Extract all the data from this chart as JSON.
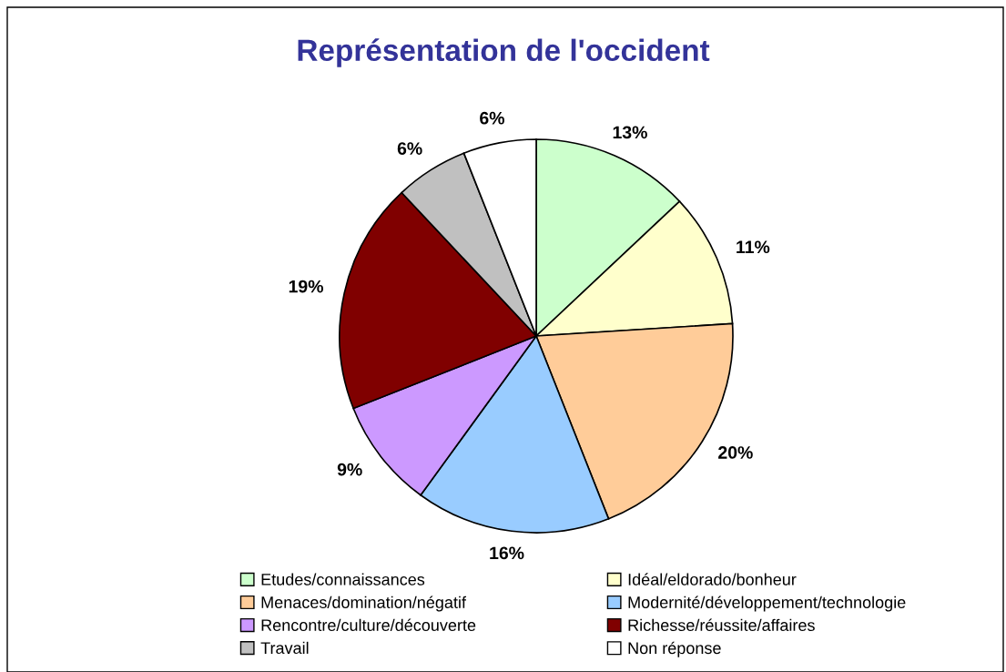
{
  "chart_data": {
    "type": "pie",
    "title": "Représentation de l'occident",
    "categories": [
      "Etudes/connaissances",
      "Idéal/eldorado/bonheur",
      "Menaces/domination/négatif",
      "Modernité/développement/technologie",
      "Rencontre/culture/découverte",
      "Richesse/réussite/affaires",
      "Travail",
      "Non réponse"
    ],
    "values": [
      13,
      11,
      20,
      16,
      9,
      19,
      6,
      6
    ],
    "value_labels": [
      "13%",
      "11%",
      "20%",
      "16%",
      "9%",
      "19%",
      "6%",
      "6%"
    ],
    "colors": [
      "#ccffcc",
      "#ffffcc",
      "#ffcc99",
      "#99ccff",
      "#cc99ff",
      "#800000",
      "#c0c0c0",
      "#ffffff"
    ],
    "legend": "bottom"
  }
}
